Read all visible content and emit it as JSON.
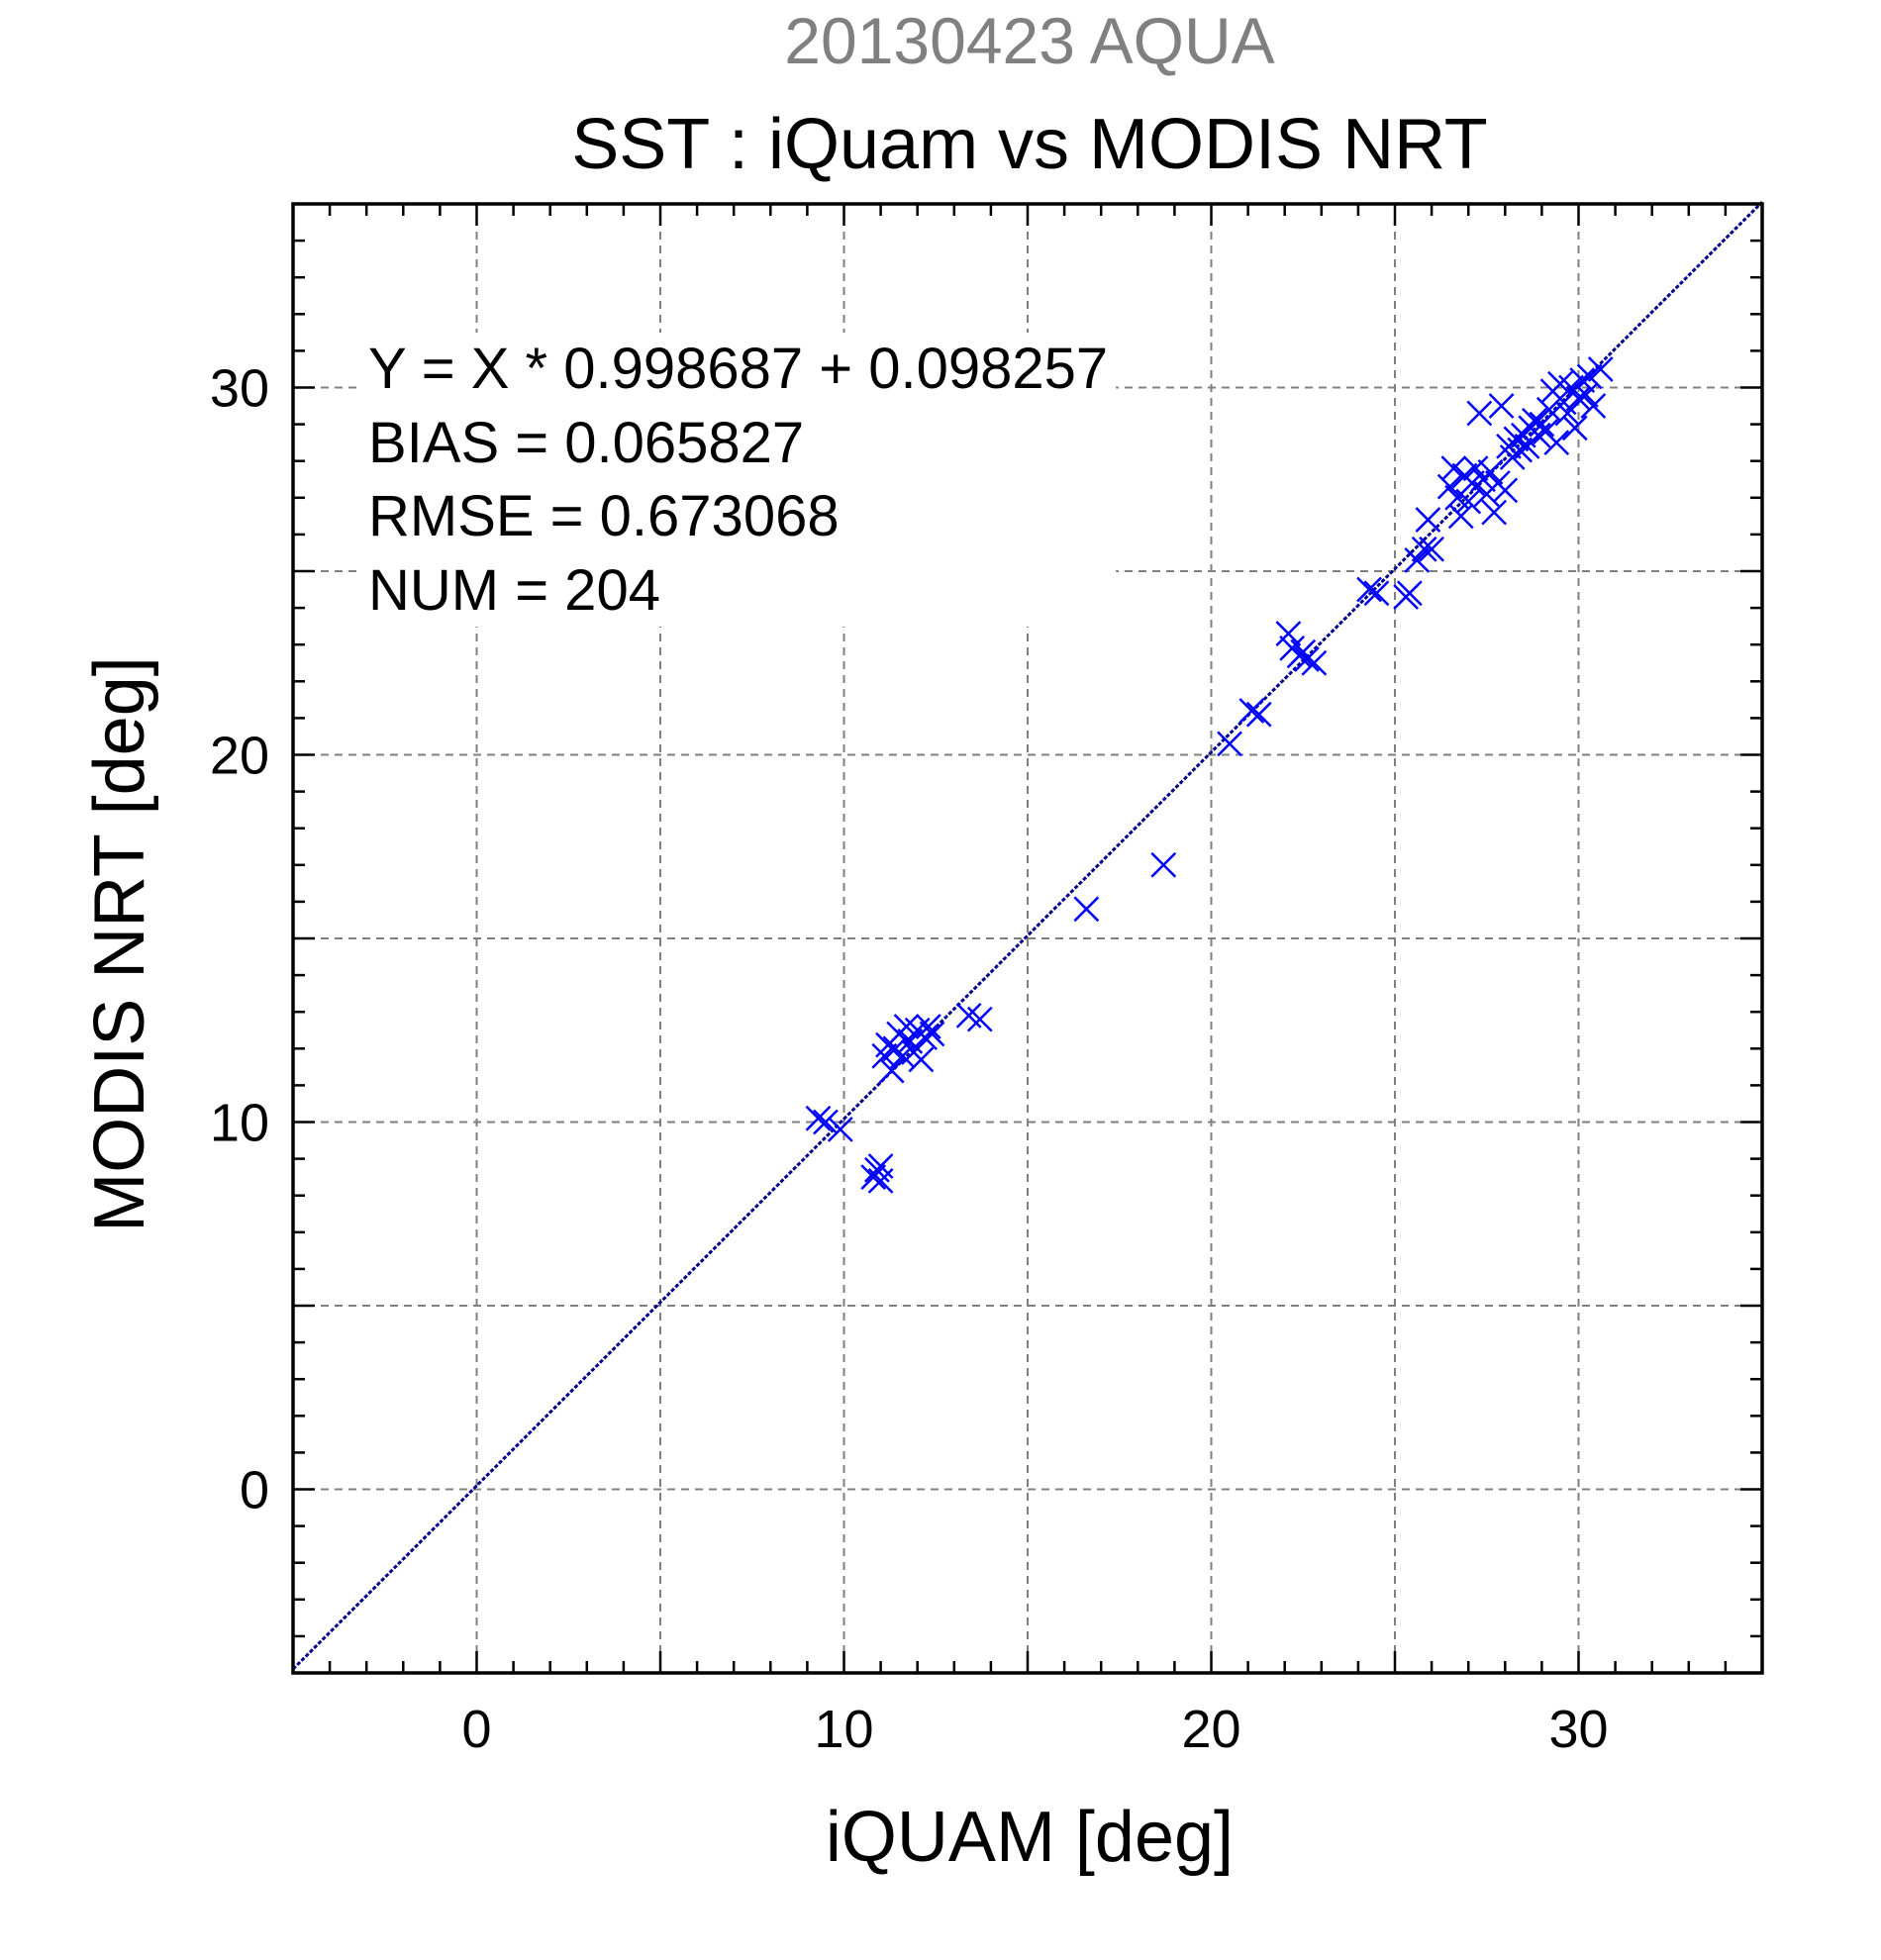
{
  "chart_data": {
    "type": "scatter",
    "supertitle": "20130423 AQUA",
    "title": "SST : iQuam vs MODIS NRT",
    "xlabel": "iQUAM [deg]",
    "ylabel": "MODIS NRT [deg]",
    "xlim": [
      -5,
      35
    ],
    "ylim": [
      -5,
      35
    ],
    "xticks": [
      0,
      10,
      20,
      30
    ],
    "yticks": [
      0,
      10,
      20,
      30
    ],
    "grid": true,
    "marker": "x",
    "colors": {
      "points": "#0000ff",
      "fit_line": "#00008b",
      "grid": "#808080",
      "frame": "#000000"
    },
    "fit_line": {
      "slope": 0.998687,
      "intercept": 0.098257
    },
    "stats": [
      "Y = X * 0.998687 + 0.098257",
      "BIAS = 0.065827",
      "RMSE = 0.673068",
      "NUM = 204"
    ],
    "points": [
      [
        9.3,
        10.1
      ],
      [
        9.5,
        10.0
      ],
      [
        9.9,
        9.8
      ],
      [
        10.8,
        8.5
      ],
      [
        10.9,
        8.7
      ],
      [
        11.0,
        8.4
      ],
      [
        11.0,
        8.8
      ],
      [
        11.1,
        11.8
      ],
      [
        11.2,
        12.1
      ],
      [
        11.3,
        11.4
      ],
      [
        11.4,
        12.0
      ],
      [
        11.5,
        12.4
      ],
      [
        11.6,
        11.8
      ],
      [
        11.7,
        12.6
      ],
      [
        11.8,
        12.2
      ],
      [
        11.9,
        11.9
      ],
      [
        12.0,
        12.5
      ],
      [
        12.1,
        11.7
      ],
      [
        12.2,
        12.3
      ],
      [
        12.3,
        12.6
      ],
      [
        12.4,
        12.4
      ],
      [
        13.4,
        12.9
      ],
      [
        13.7,
        12.8
      ],
      [
        16.6,
        15.8
      ],
      [
        18.7,
        17.0
      ],
      [
        20.5,
        20.3
      ],
      [
        21.1,
        21.2
      ],
      [
        21.3,
        21.1
      ],
      [
        22.1,
        23.3
      ],
      [
        22.2,
        22.9
      ],
      [
        22.4,
        22.7
      ],
      [
        22.5,
        22.8
      ],
      [
        22.6,
        22.6
      ],
      [
        22.8,
        22.5
      ],
      [
        24.3,
        24.5
      ],
      [
        24.5,
        24.4
      ],
      [
        25.3,
        24.3
      ],
      [
        25.4,
        24.4
      ],
      [
        25.6,
        25.3
      ],
      [
        25.8,
        25.6
      ],
      [
        25.9,
        26.4
      ],
      [
        26.0,
        25.6
      ],
      [
        26.5,
        27.3
      ],
      [
        26.6,
        27.8
      ],
      [
        26.7,
        27.0
      ],
      [
        26.8,
        26.5
      ],
      [
        26.9,
        27.6
      ],
      [
        27.0,
        26.9
      ],
      [
        27.1,
        27.4
      ],
      [
        27.2,
        27.8
      ],
      [
        27.3,
        29.3
      ],
      [
        27.4,
        27.5
      ],
      [
        27.5,
        27.1
      ],
      [
        27.6,
        27.7
      ],
      [
        27.7,
        26.6
      ],
      [
        27.8,
        27.4
      ],
      [
        27.9,
        29.5
      ],
      [
        28.0,
        27.2
      ],
      [
        28.1,
        28.4
      ],
      [
        28.2,
        28.1
      ],
      [
        28.3,
        28.6
      ],
      [
        28.4,
        28.3
      ],
      [
        28.5,
        28.7
      ],
      [
        28.6,
        28.4
      ],
      [
        28.7,
        28.9
      ],
      [
        28.8,
        29.1
      ],
      [
        28.9,
        28.7
      ],
      [
        29.0,
        29.0
      ],
      [
        29.1,
        28.8
      ],
      [
        29.2,
        29.4
      ],
      [
        29.3,
        29.9
      ],
      [
        29.4,
        28.5
      ],
      [
        29.5,
        30.1
      ],
      [
        29.6,
        29.6
      ],
      [
        29.7,
        29.3
      ],
      [
        29.8,
        30.0
      ],
      [
        29.9,
        28.9
      ],
      [
        30.0,
        29.7
      ],
      [
        30.1,
        30.2
      ],
      [
        30.2,
        29.8
      ],
      [
        30.3,
        30.3
      ],
      [
        30.4,
        29.5
      ],
      [
        30.6,
        30.5
      ]
    ]
  }
}
